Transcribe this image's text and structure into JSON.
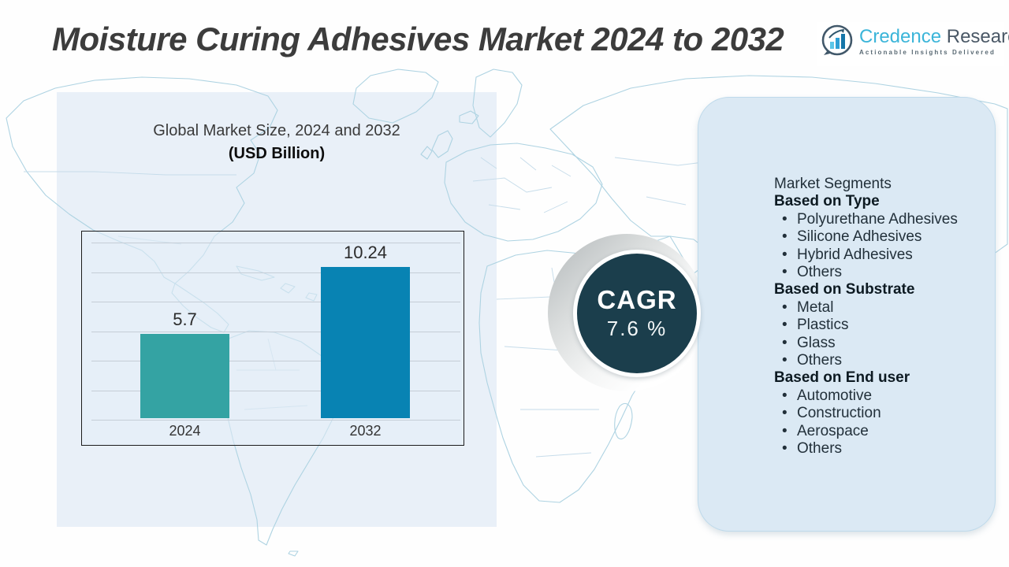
{
  "page": {
    "title": "Moisture Curing Adhesives Market 2024 to 2032"
  },
  "logo": {
    "brand_primary": "Credence",
    "brand_secondary": "Research",
    "tagline": "Actionable Insights Delivered",
    "icon": "bar-chart-in-circle-icon"
  },
  "chart": {
    "title_line1": "Global Market Size, 2024 and 2032",
    "title_line2": "(USD Billion)"
  },
  "chart_data": {
    "type": "bar",
    "title": "Global Market Size, 2024 and 2032 (USD Billion)",
    "categories": [
      "2024",
      "2032"
    ],
    "values": [
      5.7,
      10.24
    ],
    "ylim": [
      0,
      12
    ],
    "grid": true,
    "gridline_count": 7,
    "legend": "none",
    "bar_colors": [
      "#34a3a3",
      "#0883b3"
    ]
  },
  "cagr": {
    "label": "CAGR",
    "value": "7.6 %"
  },
  "segments": {
    "title": "Market Segments",
    "sections": [
      {
        "header": "Based on Type",
        "items": [
          "Polyurethane Adhesives",
          "Silicone Adhesives",
          "Hybrid Adhesives",
          "Others"
        ]
      },
      {
        "header": "Based on Substrate",
        "items": [
          "Metal",
          "Plastics",
          "Glass",
          "Others"
        ]
      },
      {
        "header": "Based on End user",
        "items": [
          "Automotive",
          "Construction",
          "Aerospace",
          "Others"
        ]
      }
    ]
  },
  "colors": {
    "bar_2024": "#34a3a3",
    "bar_2032": "#0883b3",
    "cagr_circle": "#1b3e4c",
    "segments_panel_bg": "#dbe9f4",
    "left_panel_tint": "#e9f0f8",
    "brand_blue": "#3bb5d9",
    "brand_dark": "#4a5866",
    "map_stroke": "#aed3e2",
    "title_text": "#3c3c3c"
  }
}
